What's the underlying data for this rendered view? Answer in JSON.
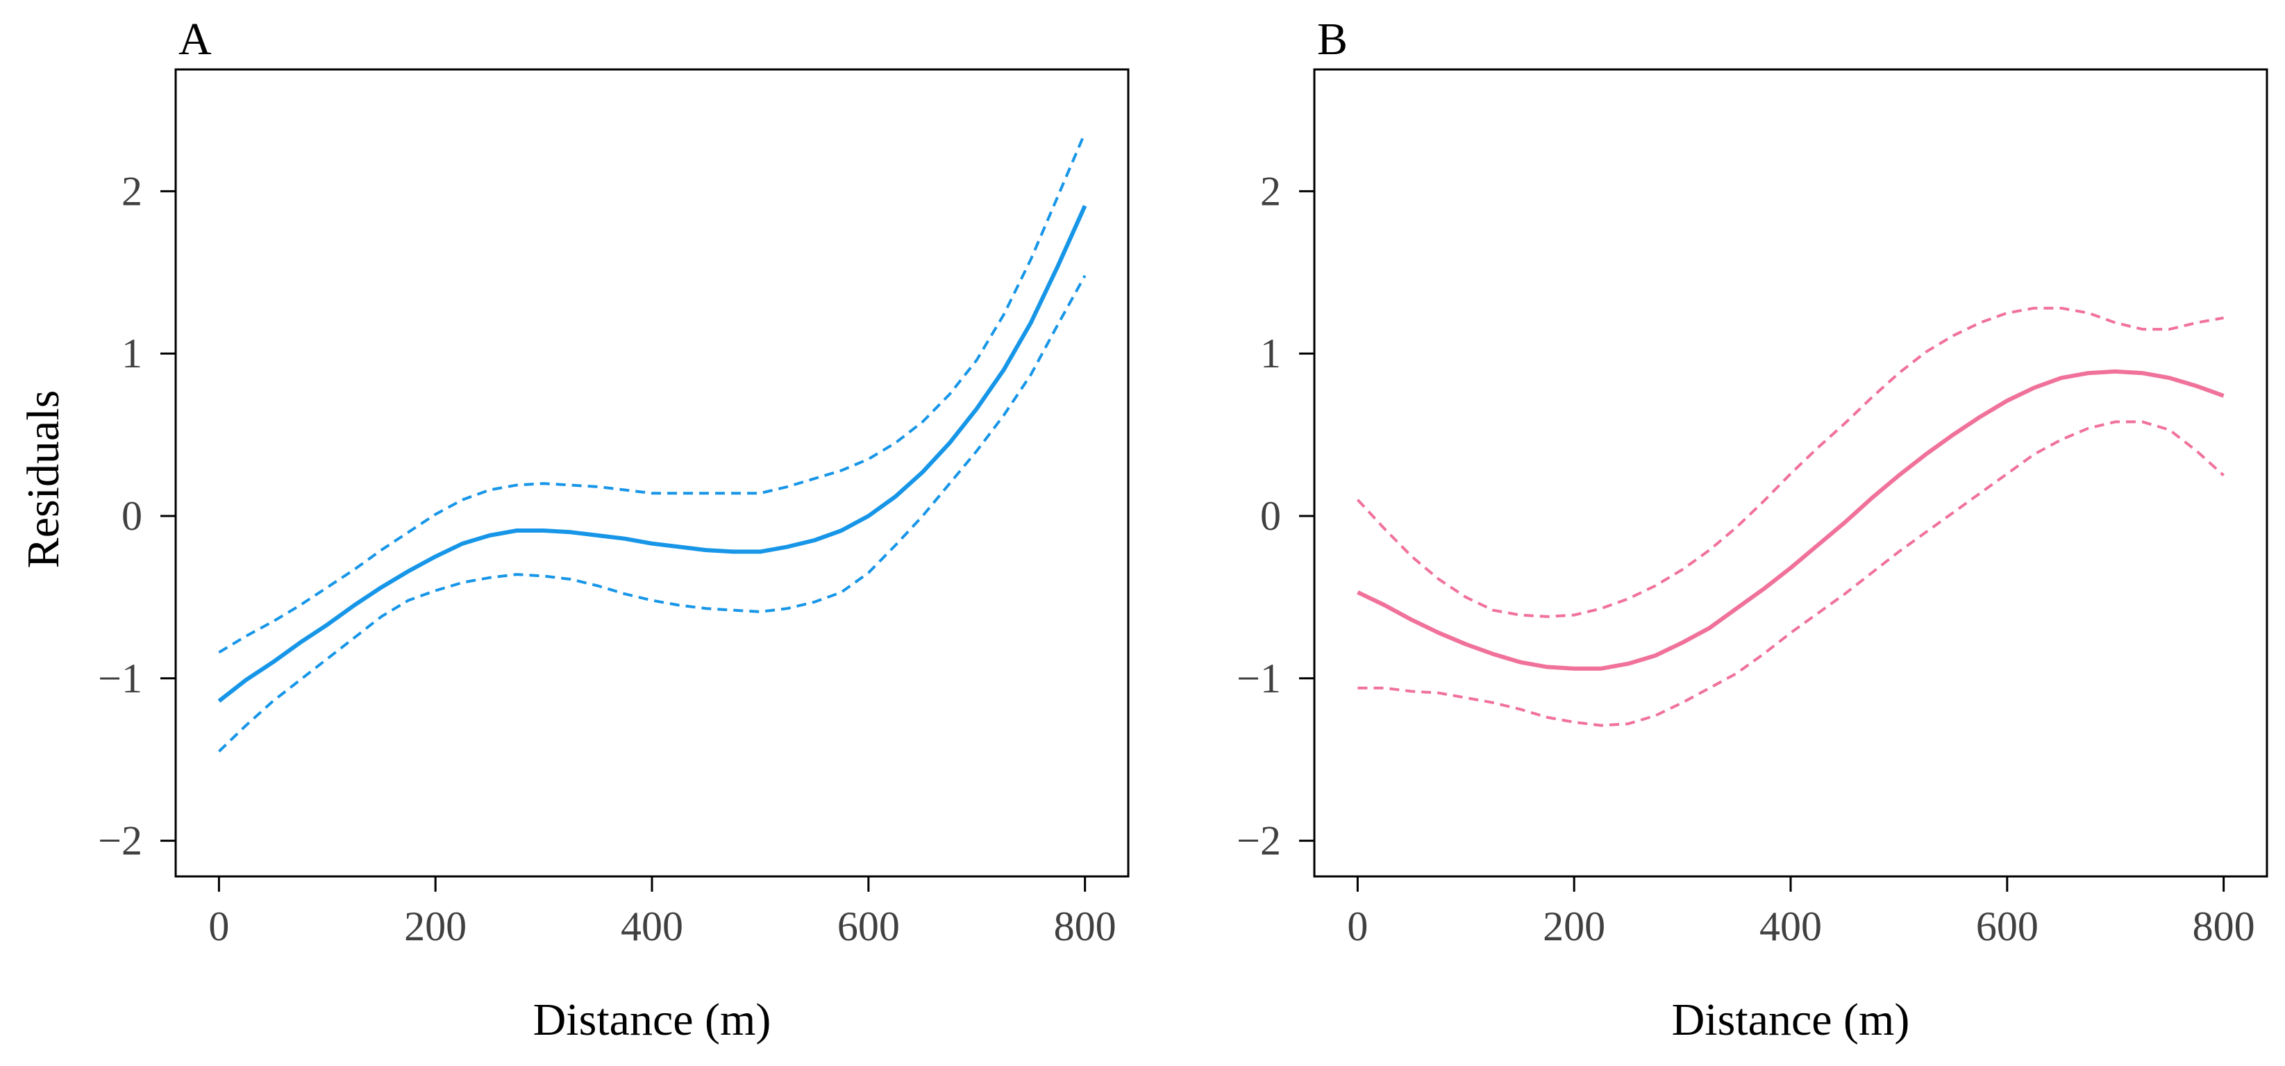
{
  "figure": {
    "ylabel": "Residuals"
  },
  "chart_data": [
    {
      "type": "line",
      "panel_label": "A",
      "xlabel": "Distance (m)",
      "ylabel": "Residuals",
      "xlim": [
        -40,
        840
      ],
      "ylim": [
        -2.22,
        2.75
      ],
      "xticks": [
        0,
        200,
        400,
        600,
        800
      ],
      "yticks": [
        -2,
        -1,
        0,
        1,
        2
      ],
      "xtick_labels": [
        "0",
        "200",
        "400",
        "600",
        "800"
      ],
      "ytick_labels": [
        "−2",
        "−1",
        "0",
        "1",
        "2"
      ],
      "color": "#1796e8",
      "series": [
        {
          "name": "fit",
          "style": "solid",
          "x": [
            0,
            25,
            50,
            75,
            100,
            125,
            150,
            175,
            200,
            225,
            250,
            275,
            300,
            325,
            350,
            375,
            400,
            425,
            450,
            475,
            500,
            525,
            550,
            575,
            600,
            625,
            650,
            675,
            700,
            725,
            750,
            775,
            800
          ],
          "y": [
            -1.14,
            -1.01,
            -0.9,
            -0.78,
            -0.67,
            -0.55,
            -0.44,
            -0.34,
            -0.25,
            -0.17,
            -0.12,
            -0.09,
            -0.09,
            -0.1,
            -0.12,
            -0.14,
            -0.17,
            -0.19,
            -0.21,
            -0.22,
            -0.22,
            -0.19,
            -0.15,
            -0.09,
            0.0,
            0.12,
            0.27,
            0.45,
            0.66,
            0.9,
            1.19,
            1.54,
            1.91
          ]
        },
        {
          "name": "upper",
          "style": "dashed",
          "x": [
            0,
            25,
            50,
            75,
            100,
            125,
            150,
            175,
            200,
            225,
            250,
            275,
            300,
            325,
            350,
            375,
            400,
            425,
            450,
            475,
            500,
            525,
            550,
            575,
            600,
            625,
            650,
            675,
            700,
            725,
            750,
            775,
            800
          ],
          "y": [
            -0.84,
            -0.74,
            -0.65,
            -0.55,
            -0.44,
            -0.33,
            -0.21,
            -0.1,
            0.01,
            0.1,
            0.16,
            0.19,
            0.2,
            0.19,
            0.18,
            0.16,
            0.14,
            0.14,
            0.14,
            0.14,
            0.14,
            0.18,
            0.23,
            0.28,
            0.35,
            0.45,
            0.58,
            0.75,
            0.96,
            1.24,
            1.58,
            1.97,
            2.36
          ]
        },
        {
          "name": "lower",
          "style": "dashed",
          "x": [
            0,
            25,
            50,
            75,
            100,
            125,
            150,
            175,
            200,
            225,
            250,
            275,
            300,
            325,
            350,
            375,
            400,
            425,
            450,
            475,
            500,
            525,
            550,
            575,
            600,
            625,
            650,
            675,
            700,
            725,
            750,
            775,
            800
          ],
          "y": [
            -1.45,
            -1.29,
            -1.14,
            -1.01,
            -0.88,
            -0.75,
            -0.62,
            -0.52,
            -0.46,
            -0.41,
            -0.38,
            -0.36,
            -0.37,
            -0.39,
            -0.43,
            -0.48,
            -0.52,
            -0.55,
            -0.57,
            -0.58,
            -0.59,
            -0.57,
            -0.53,
            -0.47,
            -0.35,
            -0.18,
            0.0,
            0.2,
            0.4,
            0.62,
            0.87,
            1.18,
            1.48
          ]
        }
      ]
    },
    {
      "type": "line",
      "panel_label": "B",
      "xlabel": "Distance (m)",
      "ylabel": "",
      "xlim": [
        -40,
        840
      ],
      "ylim": [
        -2.22,
        2.75
      ],
      "xticks": [
        0,
        200,
        400,
        600,
        800
      ],
      "yticks": [
        -2,
        -1,
        0,
        1,
        2
      ],
      "xtick_labels": [
        "0",
        "200",
        "400",
        "600",
        "800"
      ],
      "ytick_labels": [
        "−2",
        "−1",
        "0",
        "1",
        "2"
      ],
      "color": "#f0729a",
      "series": [
        {
          "name": "fit",
          "style": "solid",
          "x": [
            0,
            25,
            50,
            75,
            100,
            125,
            150,
            175,
            200,
            225,
            250,
            275,
            300,
            325,
            350,
            375,
            400,
            425,
            450,
            475,
            500,
            525,
            550,
            575,
            600,
            625,
            650,
            675,
            700,
            725,
            750,
            775,
            800
          ],
          "y": [
            -0.47,
            -0.55,
            -0.64,
            -0.72,
            -0.79,
            -0.85,
            -0.9,
            -0.93,
            -0.94,
            -0.94,
            -0.91,
            -0.86,
            -0.78,
            -0.69,
            -0.57,
            -0.45,
            -0.32,
            -0.18,
            -0.04,
            0.11,
            0.25,
            0.38,
            0.5,
            0.61,
            0.71,
            0.79,
            0.85,
            0.88,
            0.89,
            0.88,
            0.85,
            0.8,
            0.74
          ]
        },
        {
          "name": "upper",
          "style": "dashed",
          "x": [
            0,
            25,
            50,
            75,
            100,
            125,
            150,
            175,
            200,
            225,
            250,
            275,
            300,
            325,
            350,
            375,
            400,
            425,
            450,
            475,
            500,
            525,
            550,
            575,
            600,
            625,
            650,
            675,
            700,
            725,
            750,
            775,
            800
          ],
          "y": [
            0.1,
            -0.08,
            -0.25,
            -0.39,
            -0.5,
            -0.58,
            -0.61,
            -0.62,
            -0.61,
            -0.57,
            -0.51,
            -0.43,
            -0.33,
            -0.21,
            -0.07,
            0.09,
            0.26,
            0.42,
            0.57,
            0.73,
            0.88,
            1.01,
            1.11,
            1.19,
            1.25,
            1.28,
            1.28,
            1.25,
            1.19,
            1.15,
            1.15,
            1.19,
            1.22
          ]
        },
        {
          "name": "lower",
          "style": "dashed",
          "x": [
            0,
            25,
            50,
            75,
            100,
            125,
            150,
            175,
            200,
            225,
            250,
            275,
            300,
            325,
            350,
            375,
            400,
            425,
            450,
            475,
            500,
            525,
            550,
            575,
            600,
            625,
            650,
            675,
            700,
            725,
            750,
            775,
            800
          ],
          "y": [
            -1.06,
            -1.06,
            -1.08,
            -1.09,
            -1.12,
            -1.15,
            -1.19,
            -1.24,
            -1.27,
            -1.29,
            -1.28,
            -1.23,
            -1.15,
            -1.06,
            -0.97,
            -0.85,
            -0.72,
            -0.6,
            -0.48,
            -0.35,
            -0.22,
            -0.1,
            0.02,
            0.14,
            0.26,
            0.38,
            0.47,
            0.54,
            0.58,
            0.58,
            0.53,
            0.4,
            0.25
          ]
        }
      ]
    }
  ]
}
